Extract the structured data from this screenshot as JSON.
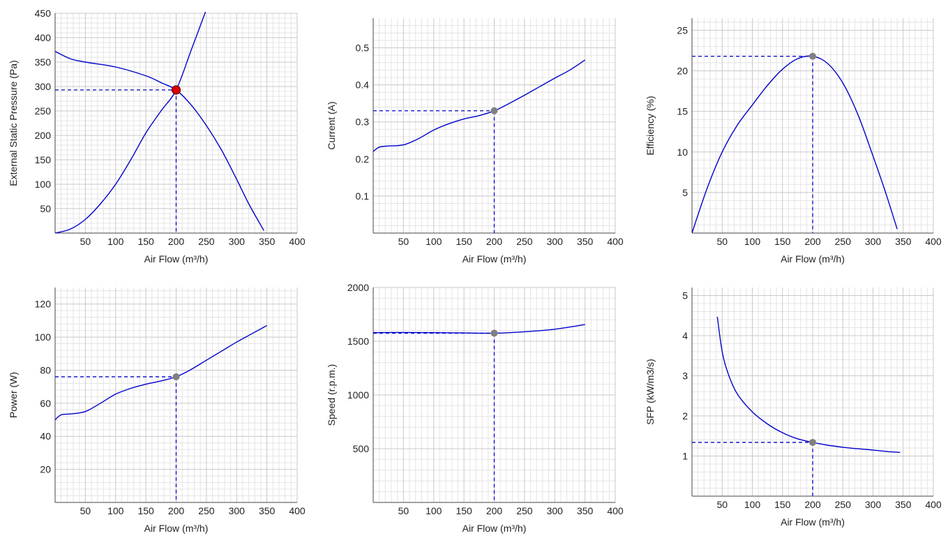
{
  "colors": {
    "curve": "#0000cc",
    "guide": "#0000cc",
    "grid_major": "#c8c8c8",
    "grid_minor": "#e4e4e4",
    "axis": "#444444",
    "point_primary": "#dd0000",
    "point_secondary": "#808080"
  },
  "chart_data": [
    {
      "id": "pressure",
      "type": "line",
      "xlabel": "Air Flow (m³/h)",
      "ylabel": "External Static Pressure (Pa)",
      "xlim": [
        0,
        400
      ],
      "ylim": [
        0,
        450
      ],
      "xticks": [
        50,
        100,
        150,
        200,
        250,
        300,
        350,
        400
      ],
      "yticks": [
        50,
        100,
        150,
        200,
        250,
        300,
        350,
        400,
        450
      ],
      "grid": true,
      "series": [
        {
          "x": [
            0,
            25,
            50,
            100,
            150,
            175,
            200,
            225,
            250,
            275,
            300,
            320,
            345
          ],
          "y": [
            372,
            357,
            350,
            340,
            322,
            308,
            293,
            262,
            220,
            170,
            110,
            60,
            5
          ]
        },
        {
          "x": [
            0,
            25,
            50,
            75,
            100,
            125,
            150,
            175,
            200,
            225,
            250
          ],
          "y": [
            0,
            8,
            28,
            60,
            100,
            150,
            205,
            250,
            293,
            375,
            458
          ]
        }
      ],
      "operating_point": {
        "x": 200,
        "y": 293,
        "marker": "primary"
      }
    },
    {
      "id": "current",
      "type": "line",
      "xlabel": "Air Flow (m³/h)",
      "ylabel": "Current (A)",
      "xlim": [
        0,
        400
      ],
      "ylim": [
        0,
        0.58
      ],
      "xticks": [
        50,
        100,
        150,
        200,
        250,
        300,
        350,
        400
      ],
      "yticks": [
        0.1,
        0.2,
        0.3,
        0.4,
        0.5
      ],
      "grid": true,
      "series": [
        {
          "x": [
            0,
            10,
            25,
            50,
            75,
            100,
            125,
            150,
            175,
            200,
            225,
            250,
            275,
            300,
            325,
            350
          ],
          "y": [
            0.22,
            0.232,
            0.235,
            0.238,
            0.255,
            0.278,
            0.295,
            0.308,
            0.317,
            0.33,
            0.35,
            0.372,
            0.395,
            0.418,
            0.44,
            0.467
          ]
        }
      ],
      "operating_point": {
        "x": 200,
        "y": 0.33,
        "marker": "secondary"
      }
    },
    {
      "id": "efficiency",
      "type": "line",
      "xlabel": "Air Flow (m³/h)",
      "ylabel": "Efficiency (%)",
      "xlim": [
        0,
        400
      ],
      "ylim": [
        0,
        26.5
      ],
      "xticks": [
        50,
        100,
        150,
        200,
        250,
        300,
        350,
        400
      ],
      "yticks": [
        5,
        10,
        15,
        20,
        25
      ],
      "grid": true,
      "series": [
        {
          "x": [
            0,
            25,
            50,
            75,
            100,
            125,
            150,
            175,
            200,
            225,
            250,
            275,
            300,
            320,
            340
          ],
          "y": [
            0,
            5.5,
            10,
            13.3,
            15.8,
            18.2,
            20.2,
            21.5,
            21.8,
            20.9,
            18.5,
            14.6,
            9.5,
            5.2,
            0.5
          ]
        }
      ],
      "operating_point": {
        "x": 200,
        "y": 21.8,
        "marker": "secondary"
      }
    },
    {
      "id": "power",
      "type": "line",
      "xlabel": "Air Flow (m³/h)",
      "ylabel": "Power (W)",
      "xlim": [
        0,
        400
      ],
      "ylim": [
        0,
        130
      ],
      "xticks": [
        50,
        100,
        150,
        200,
        250,
        300,
        350,
        400
      ],
      "yticks": [
        20,
        40,
        60,
        80,
        100,
        120
      ],
      "grid": true,
      "series": [
        {
          "x": [
            0,
            10,
            25,
            50,
            75,
            100,
            125,
            150,
            175,
            200,
            225,
            250,
            275,
            300,
            325,
            350
          ],
          "y": [
            50,
            53,
            53.5,
            55,
            60,
            65.5,
            69,
            71.5,
            73.5,
            76,
            80.5,
            86,
            91.5,
            97,
            102,
            107
          ]
        }
      ],
      "operating_point": {
        "x": 200,
        "y": 76,
        "marker": "secondary"
      }
    },
    {
      "id": "speed",
      "type": "line",
      "xlabel": "Air Flow (m³/h)",
      "ylabel": "Speed (r.p.m.)",
      "xlim": [
        0,
        400
      ],
      "ylim": [
        0,
        2000
      ],
      "xticks": [
        50,
        100,
        150,
        200,
        250,
        300,
        350,
        400
      ],
      "yticks": [
        500,
        1000,
        1500,
        2000
      ],
      "grid": true,
      "series": [
        {
          "x": [
            0,
            50,
            100,
            150,
            200,
            250,
            300,
            350
          ],
          "y": [
            1580,
            1582,
            1580,
            1577,
            1575,
            1588,
            1612,
            1655
          ]
        }
      ],
      "operating_point": {
        "x": 200,
        "y": 1575,
        "marker": "secondary"
      }
    },
    {
      "id": "sfp",
      "type": "line",
      "xlabel": "Air Flow (m³/h)",
      "ylabel": "SFP (kW/m3/s)",
      "xlim": [
        0,
        400
      ],
      "ylim": [
        0,
        5.2
      ],
      "xticks": [
        50,
        100,
        150,
        200,
        250,
        300,
        350,
        400
      ],
      "yticks": [
        1,
        2,
        3,
        4,
        5
      ],
      "grid": true,
      "series": [
        {
          "x": [
            42,
            50,
            60,
            75,
            100,
            125,
            150,
            175,
            200,
            225,
            250,
            275,
            300,
            325,
            345
          ],
          "y": [
            4.47,
            3.6,
            3.05,
            2.55,
            2.1,
            1.8,
            1.58,
            1.43,
            1.34,
            1.27,
            1.22,
            1.18,
            1.15,
            1.11,
            1.09
          ]
        }
      ],
      "operating_point": {
        "x": 200,
        "y": 1.34,
        "marker": "secondary"
      }
    }
  ]
}
